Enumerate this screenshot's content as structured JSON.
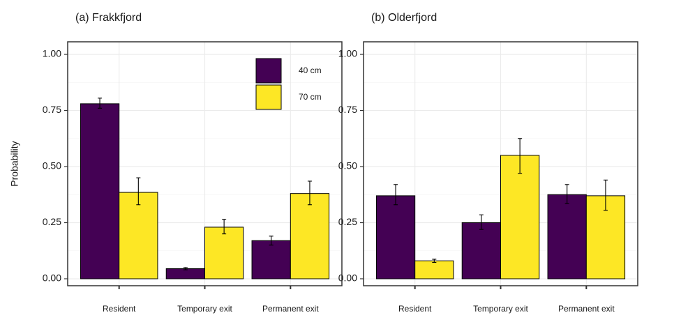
{
  "chart_data": [
    {
      "type": "bar",
      "title": "(a) Frakkfjord",
      "y_label": "Probability",
      "categories": [
        "Resident",
        "Temporary exit",
        "Permanent exit"
      ],
      "series": [
        {
          "name": "40 cm",
          "color": "#440154",
          "values": [
            0.78,
            0.045,
            0.17
          ],
          "lower": [
            0.76,
            0.04,
            0.15
          ],
          "upper": [
            0.805,
            0.05,
            0.19
          ]
        },
        {
          "name": "70 cm",
          "color": "#fde725",
          "values": [
            0.385,
            0.23,
            0.38
          ],
          "lower": [
            0.33,
            0.2,
            0.33
          ],
          "upper": [
            0.45,
            0.265,
            0.435
          ]
        }
      ],
      "ylim": [
        -0.031,
        1.056
      ],
      "yticks": [
        {
          "value": 0,
          "label": "0.00"
        },
        {
          "value": 0.25,
          "label": "0.25"
        },
        {
          "value": 0.5,
          "label": "0.50"
        },
        {
          "value": 0.75,
          "label": "0.75"
        },
        {
          "value": 1,
          "label": "1.00"
        }
      ],
      "grid": true,
      "legend": "top-right"
    },
    {
      "type": "bar",
      "title": "(b) Olderfjord",
      "categories": [
        "Resident",
        "Temporary exit",
        "Permanent exit"
      ],
      "series": [
        {
          "name": "40 cm",
          "color": "#440154",
          "values": [
            0.37,
            0.25,
            0.375
          ],
          "lower": [
            0.33,
            0.22,
            0.335
          ],
          "upper": [
            0.42,
            0.285,
            0.42
          ]
        },
        {
          "name": "70 cm",
          "color": "#fde725",
          "values": [
            0.08,
            0.55,
            0.37
          ],
          "lower": [
            0.073,
            0.47,
            0.305
          ],
          "upper": [
            0.087,
            0.625,
            0.44
          ]
        }
      ],
      "ylim": [
        -0.031,
        1.056
      ],
      "yticks": [
        {
          "value": 0,
          "label": "0.00"
        },
        {
          "value": 0.25,
          "label": "0.25"
        },
        {
          "value": 0.5,
          "label": "0.50"
        },
        {
          "value": 0.75,
          "label": "0.75"
        },
        {
          "value": 1,
          "label": "1.00"
        }
      ],
      "grid": true
    }
  ]
}
